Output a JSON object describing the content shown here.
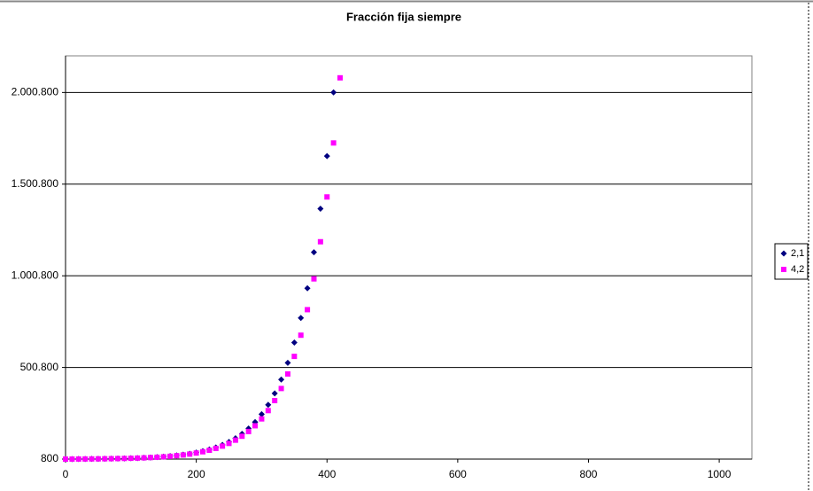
{
  "chart_data": {
    "type": "scatter",
    "title": "Fracción fija siempre",
    "xlim": [
      0,
      1050
    ],
    "xticks": [
      0,
      200,
      400,
      600,
      800,
      1000
    ],
    "ylim": [
      800,
      2200800
    ],
    "yticks": [
      {
        "value": 800,
        "label": "800"
      },
      {
        "value": 500800,
        "label": "500.800"
      },
      {
        "value": 1000800,
        "label": "1.000.800"
      },
      {
        "value": 1500800,
        "label": "1.500.800"
      },
      {
        "value": 2000800,
        "label": "2.000.800"
      }
    ],
    "grid": true,
    "legend": "right",
    "series": [
      {
        "name": "2,1",
        "color": "#000080",
        "marker": "diamond",
        "x": [
          0,
          10,
          20,
          30,
          40,
          50,
          60,
          70,
          80,
          90,
          100,
          110,
          120,
          130,
          140,
          150,
          160,
          170,
          180,
          190,
          200,
          210,
          220,
          230,
          240,
          250,
          260,
          270,
          280,
          290,
          300,
          310,
          320,
          330,
          340,
          350,
          360,
          370,
          380,
          390,
          400,
          410
        ],
        "values": [
          800,
          968,
          1172,
          1418,
          1716,
          2077,
          2514,
          3043,
          3683,
          4457,
          5394,
          6529,
          7902,
          9563,
          11574,
          14008,
          16954,
          20518,
          24833,
          30055,
          36375,
          44024,
          53280,
          64488,
          78048,
          94456,
          114320,
          138360,
          167440,
          202640,
          245280,
          296880,
          359280,
          434800,
          526240,
          636880,
          770800,
          932880,
          1129040,
          1366480,
          1653840,
          2001600
        ]
      },
      {
        "name": "4,2",
        "color": "#ff00ff",
        "marker": "square",
        "x": [
          0,
          10,
          20,
          30,
          40,
          50,
          60,
          70,
          80,
          90,
          100,
          110,
          120,
          130,
          140,
          150,
          160,
          170,
          180,
          190,
          200,
          210,
          220,
          230,
          240,
          250,
          260,
          270,
          280,
          290,
          300,
          310,
          320,
          330,
          340,
          350,
          360,
          370,
          380,
          390,
          400,
          410,
          420
        ],
        "values": [
          800,
          965,
          1163,
          1403,
          1692,
          2040,
          2460,
          2967,
          3578,
          4314,
          5203,
          6274,
          7566,
          9124,
          11003,
          13268,
          16000,
          19294,
          23267,
          28058,
          33835,
          40802,
          49203,
          59334,
          71551,
          86284,
          104050,
          125475,
          151310,
          182465,
          220036,
          265342,
          319976,
          385859,
          465307,
          561114,
          676648,
          815970,
          983978,
          1186579,
          1430896,
          1725517,
          2080801
        ]
      }
    ]
  }
}
